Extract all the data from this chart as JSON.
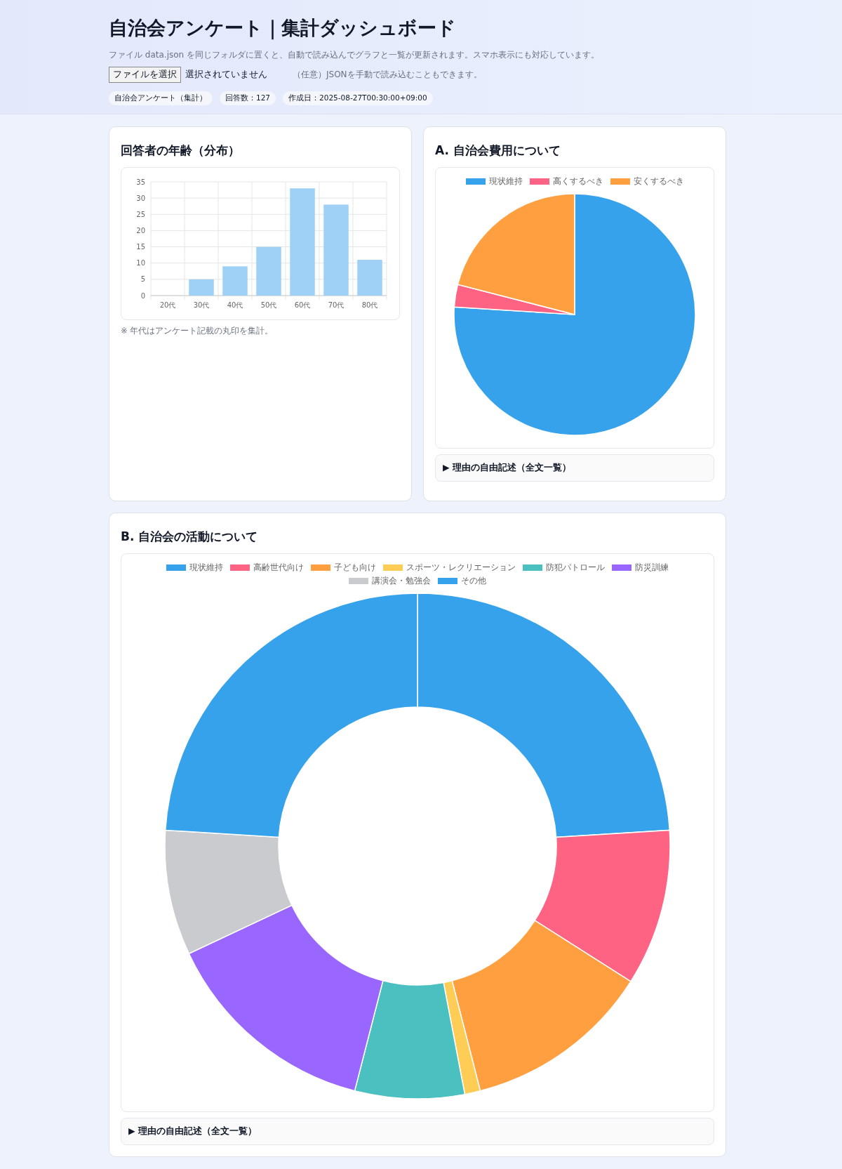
{
  "chart_data": [
    {
      "type": "other",
      "title": "自治会アンケート｜集計ダッシュボード",
      "annotations": [
        "ファイル data.json を同じフォルダに置くと、自動で読み込んでグラフと一覧が更新されます。スマホ表示にも対応しています。",
        "ファイルを選択",
        "選択されていません",
        "（任意）JSONを手動で読み込むこともできます。",
        "自治会アンケート（集計）",
        "回答数：127",
        "作成日：2025-08-27T00:30:00+09:00"
      ]
    },
    {
      "type": "bar",
      "title": "回答者の年齢（分布）",
      "categories": [
        "20代",
        "30代",
        "40代",
        "50代",
        "60代",
        "70代",
        "80代"
      ],
      "values": [
        0,
        5,
        9,
        15,
        33,
        28,
        11
      ],
      "color": "#9fd0f5",
      "ylim": [
        0,
        35
      ],
      "yticks": [
        0,
        5,
        10,
        15,
        20,
        25,
        30,
        35
      ],
      "grid": true,
      "annotations": [
        "※ 年代はアンケート記載の丸印を集計。"
      ]
    },
    {
      "type": "pie",
      "title": "A. 自治会費用について",
      "categories": [
        "現状維持",
        "高くするべき",
        "安くするべき"
      ],
      "values": [
        76,
        3,
        21
      ],
      "colors": [
        "#36a2eb",
        "#ff6384",
        "#ff9f40"
      ],
      "legend": "top",
      "annotations": [
        "▶ 理由の自由記述（全文一覧）"
      ]
    },
    {
      "type": "donut",
      "title": "B. 自治会の活動について",
      "categories": [
        "現状維持",
        "高齢世代向け",
        "子ども向け",
        "スポーツ・レクリエーション",
        "防犯パトロール",
        "防災訓練",
        "講演会・勉強会",
        "その他"
      ],
      "values": [
        24,
        10,
        12,
        1,
        7,
        14,
        8,
        24
      ],
      "colors": [
        "#36a2eb",
        "#ff6384",
        "#ff9f40",
        "#ffcd56",
        "#4bc0c0",
        "#9966ff",
        "#c9cbcf",
        "#36a2eb"
      ],
      "legend": "top",
      "annotations": [
        "▶ 理由の自由記述（全文一覧）"
      ]
    }
  ]
}
